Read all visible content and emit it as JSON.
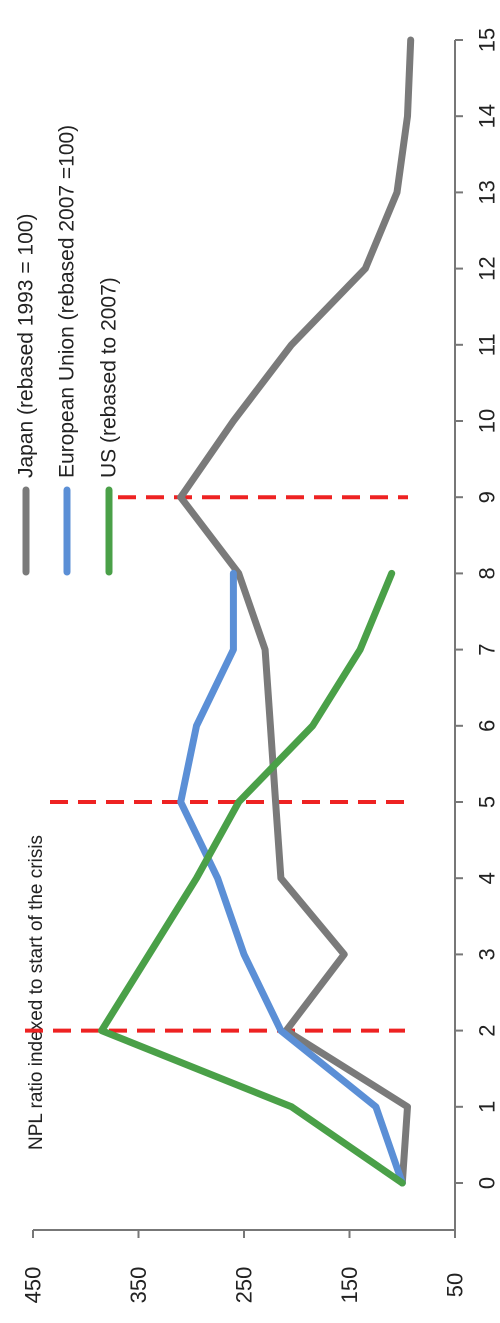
{
  "chart_data": {
    "type": "line",
    "orientation": "rotated 90 degrees clockwise (page must be turned to read)",
    "title": "",
    "xlabel": "",
    "ylabel": "NPL ratio indexed to start of the crisis",
    "x": [
      0,
      1,
      2,
      3,
      4,
      5,
      6,
      7,
      8,
      9,
      10,
      11,
      12,
      13,
      14,
      15
    ],
    "xticks": [
      "0",
      "1",
      "2",
      "3",
      "4",
      "5",
      "6",
      "7",
      "8",
      "9",
      "10",
      "11",
      "12",
      "13",
      "14",
      "15"
    ],
    "yticks": [
      "50",
      "150",
      "250",
      "350",
      "450"
    ],
    "ylim": [
      50,
      450
    ],
    "xlim": [
      0,
      15
    ],
    "series": [
      {
        "name": "Japan (rebased 1993 = 100)",
        "color": "#7a7a7a",
        "x": [
          0,
          1,
          2,
          3,
          4,
          5,
          6,
          7,
          8,
          9,
          10,
          11,
          12,
          13,
          14,
          15
        ],
        "values": [
          100,
          95,
          210,
          155,
          215,
          220,
          225,
          230,
          255,
          310,
          260,
          205,
          135,
          105,
          95,
          92
        ]
      },
      {
        "name": "European Union (rebased 2007 =100)",
        "color": "#5b8fd6",
        "x": [
          0,
          1,
          2,
          3,
          4,
          5,
          6,
          7,
          8
        ],
        "values": [
          100,
          125,
          215,
          250,
          275,
          310,
          295,
          260,
          260
        ]
      },
      {
        "name": "US (rebased to 2007)",
        "color": "#4aa048",
        "x": [
          0,
          1,
          2,
          3,
          4,
          5,
          6,
          7,
          8
        ],
        "values": [
          100,
          205,
          385,
          340,
          295,
          255,
          185,
          140,
          110
        ]
      }
    ],
    "reference_lines": {
      "color": "#ee2222",
      "style": "dashed",
      "x": [
        2,
        5,
        9
      ]
    },
    "grid": false,
    "legend_position": "upper-right of rotated plot (top-center of page)"
  }
}
